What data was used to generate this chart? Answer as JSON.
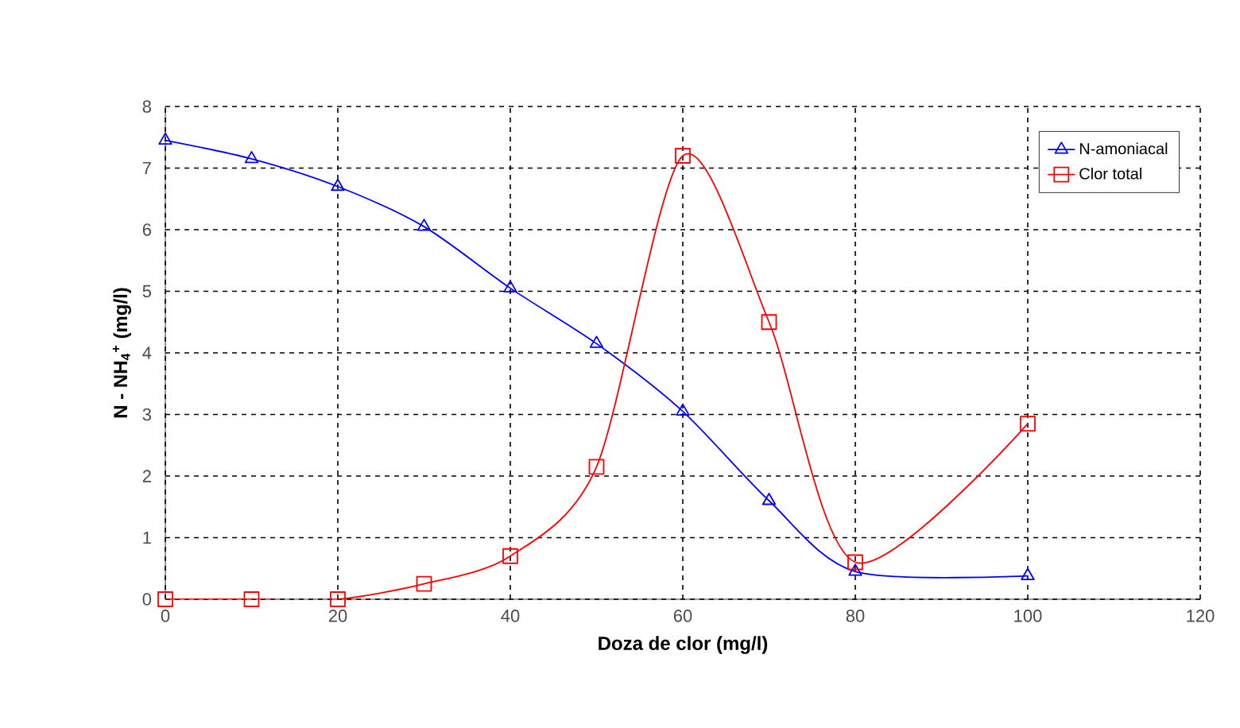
{
  "chart_data": {
    "type": "line",
    "xlabel": "Doza de clor (mg/l)",
    "ylabel": "N - NH$_{4}$$^{+}$ (mg/l)",
    "x": [
      0,
      10,
      20,
      30,
      40,
      50,
      60,
      70,
      80,
      100
    ],
    "series": [
      {
        "name": "N-amoniacal",
        "color": "#0000ff",
        "marker": "triangle",
        "values": [
          7.45,
          7.15,
          6.7,
          6.05,
          5.05,
          4.15,
          3.05,
          1.6,
          0.45,
          0.38
        ]
      },
      {
        "name": "Clor total",
        "color": "#ff0000",
        "marker": "square",
        "values": [
          0,
          0,
          0,
          0.25,
          0.7,
          2.15,
          7.2,
          4.5,
          0.6,
          2.85
        ]
      }
    ],
    "xlim": [
      0,
      120
    ],
    "xticks": [
      0,
      20,
      40,
      60,
      80,
      100,
      120
    ],
    "ylim": [
      0,
      8
    ],
    "yticks": [
      0,
      1,
      2,
      3,
      4,
      5,
      6,
      7,
      8
    ],
    "grid": true,
    "legend": "top right",
    "line_style": "solid"
  }
}
